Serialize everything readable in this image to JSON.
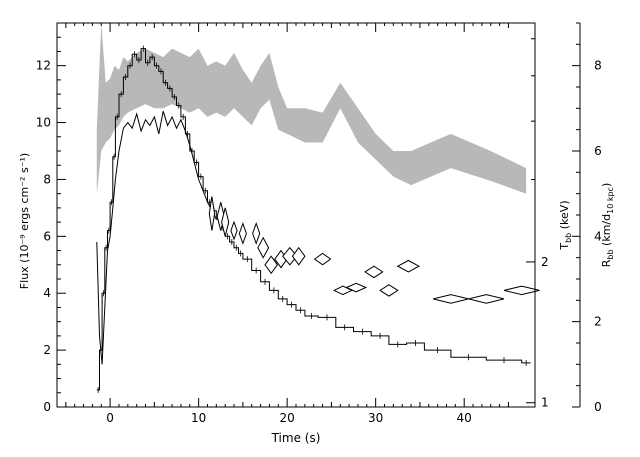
{
  "chart_data": {
    "type": "line",
    "title": "",
    "xlabel": "Time (s)",
    "xlim": [
      -6,
      48
    ],
    "x_ticks": [
      0,
      10,
      20,
      30,
      40
    ],
    "ylabel": "Flux (10⁻⁹ ergs cm⁻² s⁻¹)",
    "ylim": [
      0,
      13.5
    ],
    "y_ticks": [
      0,
      2,
      4,
      6,
      8,
      10,
      12
    ],
    "right_axes": [
      {
        "label": "T_bb (keV)",
        "label_main": "T",
        "label_sub": "bb",
        "label_tail": " (keV)",
        "scale": "log",
        "ticks": [
          1,
          2
        ],
        "tick_flux_positions": [
          0.15,
          5.1
        ]
      },
      {
        "label": "R_bb (km/d_10 kpc)",
        "label_main": "R",
        "label_sub": "bb",
        "label_tail": " (km/d",
        "label_sub2": "10 kpc",
        "label_end": ")",
        "scale": "linear",
        "ylim": [
          0,
          9
        ],
        "ticks": [
          0,
          2,
          4,
          6,
          8
        ]
      }
    ],
    "series": [
      {
        "style": "histogram",
        "x": [
          -1.5,
          -1.2,
          -0.9,
          -0.6,
          -0.3,
          0.0,
          0.3,
          0.6,
          1.0,
          1.5,
          2.0,
          2.5,
          3.0,
          3.5,
          4.0,
          4.5,
          5.0,
          5.5,
          6.0,
          6.5,
          7.0,
          7.5,
          8.0,
          8.5,
          9.0,
          9.5,
          10.0,
          10.5,
          11.0,
          11.5,
          12.0,
          12.5,
          13.0,
          13.5,
          14.0,
          14.5,
          15.0,
          16.0,
          17.0,
          18.0,
          19.0,
          20.0,
          21.0,
          22.0,
          23.5,
          25.5,
          27.5,
          29.5,
          31.5,
          33.5,
          35.5,
          38.5,
          42.5,
          46.5
        ],
        "y": [
          0.6,
          2.0,
          4.0,
          5.6,
          6.2,
          7.2,
          8.8,
          10.2,
          11.0,
          11.6,
          12.0,
          12.4,
          12.2,
          12.6,
          12.1,
          12.3,
          12.0,
          11.8,
          11.4,
          11.2,
          10.9,
          10.6,
          10.2,
          9.6,
          9.0,
          8.6,
          8.1,
          7.6,
          7.2,
          6.9,
          6.6,
          6.3,
          6.0,
          5.8,
          5.6,
          5.4,
          5.2,
          4.8,
          4.4,
          4.1,
          3.8,
          3.6,
          3.4,
          3.2,
          3.15,
          2.8,
          2.65,
          2.5,
          2.2,
          2.25,
          2.0,
          1.75,
          1.65,
          1.55
        ]
      },
      {
        "style": "line",
        "x": [
          -1.5,
          -1.2,
          -0.9,
          -0.6,
          -0.3,
          0.0,
          0.3,
          0.6,
          1.0,
          1.5,
          2.0,
          2.5,
          3.0,
          3.5,
          4.0,
          4.5,
          5.0,
          5.5,
          6.0,
          6.5,
          7.0,
          7.5,
          8.0,
          8.5,
          9.0,
          9.5,
          10.0,
          10.5,
          11.0,
          11.5,
          12.0
        ],
        "y": [
          5.8,
          2.5,
          1.5,
          3.5,
          5.5,
          6.0,
          7.0,
          8.0,
          9.0,
          9.8,
          10.0,
          9.8,
          10.3,
          9.7,
          10.1,
          9.9,
          10.2,
          9.6,
          10.4,
          9.9,
          10.2,
          9.8,
          10.1,
          9.7,
          9.2,
          8.6,
          8.0,
          7.6,
          7.2,
          6.9,
          6.6
        ]
      },
      {
        "style": "band",
        "axis": "R_bb",
        "x": [
          -1.5,
          -1.0,
          -0.5,
          0.0,
          0.5,
          1.0,
          1.5,
          2.0,
          3.0,
          4.0,
          5.0,
          6.0,
          7.0,
          8.0,
          9.0,
          10.0,
          11.0,
          12.0,
          13.0,
          14.0,
          15.0,
          16.0,
          17.0,
          18.0,
          19.0,
          20.0,
          22.0,
          24.0,
          26.0,
          28.0,
          30.0,
          32.0,
          34.0,
          38.5,
          43.0,
          47.0
        ],
        "low": [
          5.0,
          6.0,
          6.2,
          6.3,
          6.5,
          6.6,
          6.8,
          6.9,
          7.0,
          7.1,
          7.0,
          7.0,
          7.1,
          7.0,
          6.9,
          7.0,
          6.8,
          6.9,
          6.8,
          7.0,
          6.8,
          6.6,
          7.0,
          7.2,
          6.5,
          6.4,
          6.2,
          6.2,
          7.0,
          6.2,
          5.8,
          5.4,
          5.2,
          5.6,
          5.3,
          5.0
        ],
        "high": [
          6.5,
          9.0,
          7.6,
          7.7,
          8.0,
          7.9,
          8.2,
          8.1,
          8.3,
          8.4,
          8.3,
          8.2,
          8.4,
          8.3,
          8.2,
          8.4,
          8.0,
          8.1,
          8.0,
          8.3,
          7.9,
          7.6,
          8.0,
          8.3,
          7.5,
          7.0,
          7.0,
          6.9,
          7.6,
          7.0,
          6.4,
          6.0,
          6.0,
          6.4,
          6.0,
          5.6
        ]
      },
      {
        "style": "diamonds",
        "axis": "T_bb",
        "x": [
          11.5,
          12.5,
          13.0,
          14.0,
          15.0,
          16.5,
          17.3,
          18.2,
          19.3,
          20.3,
          21.3,
          24.0,
          26.3,
          27.8,
          29.8,
          31.5,
          33.7,
          38.5,
          42.5,
          46.5
        ],
        "y": [
          6.8,
          6.7,
          6.5,
          6.2,
          6.1,
          6.1,
          5.6,
          5.0,
          5.2,
          5.3,
          5.3,
          5.2,
          4.1,
          4.2,
          4.75,
          4.1,
          4.95,
          3.8,
          3.8,
          4.1
        ],
        "halfwidth": [
          0.3,
          0.4,
          0.4,
          0.35,
          0.4,
          0.4,
          0.6,
          0.7,
          0.7,
          0.8,
          0.7,
          0.9,
          1.0,
          1.1,
          1.0,
          1.0,
          1.2,
          2.0,
          2.0,
          2.0
        ],
        "halfheight": [
          0.6,
          0.5,
          0.5,
          0.3,
          0.35,
          0.35,
          0.35,
          0.3,
          0.3,
          0.3,
          0.3,
          0.2,
          0.15,
          0.15,
          0.2,
          0.2,
          0.2,
          0.15,
          0.15,
          0.15
        ]
      }
    ]
  },
  "colors": {
    "band": "#b8b8b8",
    "line": "#000000",
    "background": "#ffffff"
  }
}
